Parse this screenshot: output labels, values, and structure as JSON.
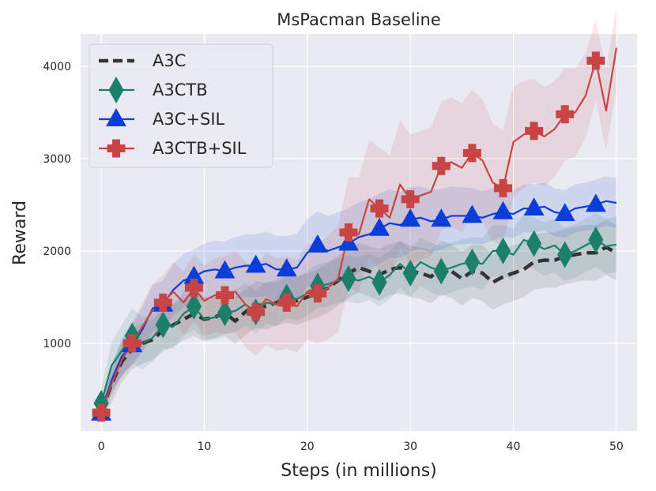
{
  "chart_data": {
    "type": "line",
    "title": "MsPacman Baseline",
    "xlabel": "Steps (in millions)",
    "ylabel": "Reward",
    "xlim": [
      -2,
      52
    ],
    "ylim": [
      50,
      4350
    ],
    "xticks": [
      0,
      10,
      20,
      30,
      40,
      50
    ],
    "yticks": [
      1000,
      2000,
      3000,
      4000
    ],
    "x_tick_labels": [
      "0",
      "10",
      "20",
      "30",
      "40",
      "50"
    ],
    "y_tick_labels": [
      "1000",
      "2000",
      "3000",
      "4000"
    ],
    "grid": true,
    "legend_position": "top-left",
    "series": [
      {
        "name": "A3C",
        "color": "#333333",
        "style": "dashed",
        "marker": "none",
        "x": [
          0,
          1,
          2,
          3,
          4,
          5,
          6,
          7,
          8,
          9,
          10,
          11,
          12,
          13,
          14,
          15,
          16,
          17,
          18,
          19,
          20,
          21,
          22,
          23,
          24,
          25,
          26,
          27,
          28,
          29,
          30,
          31,
          32,
          33,
          34,
          35,
          36,
          37,
          38,
          39,
          40,
          41,
          42,
          43,
          44,
          45,
          46,
          47,
          48,
          49,
          50
        ],
        "y": [
          250,
          560,
          800,
          940,
          1000,
          1040,
          1140,
          1200,
          1260,
          1320,
          1260,
          1280,
          1330,
          1240,
          1340,
          1420,
          1400,
          1440,
          1480,
          1460,
          1500,
          1540,
          1600,
          1680,
          1760,
          1820,
          1780,
          1740,
          1800,
          1820,
          1780,
          1760,
          1720,
          1820,
          1780,
          1700,
          1780,
          1760,
          1660,
          1720,
          1760,
          1800,
          1880,
          1900,
          1900,
          1940,
          1960,
          1980,
          1980,
          2040,
          1980
        ],
        "band": [
          120,
          200,
          220,
          220,
          220,
          220,
          230,
          230,
          230,
          240,
          240,
          240,
          250,
          250,
          250,
          250,
          250,
          250,
          260,
          260,
          260,
          260,
          270,
          270,
          270,
          270,
          270,
          280,
          280,
          280,
          280,
          280,
          290,
          290,
          290,
          290,
          290,
          300,
          300,
          300,
          300,
          300,
          300,
          300,
          300,
          300,
          300,
          300,
          300,
          300,
          300
        ]
      },
      {
        "name": "A3CTB",
        "color": "#1b7f6a",
        "style": "solid",
        "marker": "thin_diamond",
        "marker_x": [
          0,
          3,
          6,
          9,
          12,
          15,
          18,
          21,
          24,
          27,
          30,
          33,
          36,
          39,
          42,
          45,
          48
        ],
        "x": [
          0,
          1,
          2,
          3,
          4,
          5,
          6,
          7,
          8,
          9,
          10,
          11,
          12,
          13,
          14,
          15,
          16,
          17,
          18,
          19,
          20,
          21,
          22,
          23,
          24,
          25,
          26,
          27,
          28,
          29,
          30,
          31,
          32,
          33,
          34,
          35,
          36,
          37,
          38,
          39,
          40,
          41,
          42,
          43,
          44,
          45,
          46,
          47,
          48,
          49,
          50
        ],
        "y": [
          350,
          760,
          920,
          1080,
          1000,
          1060,
          1200,
          1180,
          1320,
          1400,
          1260,
          1280,
          1330,
          1350,
          1420,
          1340,
          1440,
          1420,
          1500,
          1480,
          1540,
          1620,
          1640,
          1680,
          1700,
          1680,
          1720,
          1660,
          1740,
          1860,
          1760,
          1880,
          1820,
          1780,
          1820,
          1860,
          1880,
          1860,
          2000,
          2000,
          1960,
          2120,
          2080,
          2020,
          2060,
          1960,
          2000,
          2060,
          2120,
          2050,
          2070
        ],
        "band": [
          150,
          250,
          280,
          300,
          280,
          260,
          260,
          240,
          240,
          250,
          220,
          220,
          230,
          230,
          230,
          230,
          230,
          230,
          230,
          230,
          240,
          240,
          240,
          240,
          250,
          250,
          250,
          260,
          260,
          260,
          260,
          260,
          270,
          270,
          270,
          270,
          270,
          280,
          280,
          280,
          280,
          280,
          280,
          290,
          290,
          290,
          290,
          290,
          290,
          300,
          300
        ]
      },
      {
        "name": "A3C+SIL",
        "color": "#0a3ed8",
        "style": "solid",
        "marker": "triangle",
        "marker_x": [
          0,
          3,
          6,
          9,
          12,
          15,
          18,
          21,
          24,
          27,
          30,
          33,
          36,
          39,
          42,
          45,
          48
        ],
        "x": [
          0,
          1,
          2,
          3,
          4,
          5,
          6,
          7,
          8,
          9,
          10,
          11,
          12,
          13,
          14,
          15,
          16,
          17,
          18,
          19,
          20,
          21,
          22,
          23,
          24,
          25,
          26,
          27,
          28,
          29,
          30,
          31,
          32,
          33,
          34,
          35,
          36,
          37,
          38,
          39,
          40,
          41,
          42,
          43,
          44,
          45,
          46,
          47,
          48,
          49,
          50
        ],
        "y": [
          240,
          600,
          860,
          980,
          1150,
          1380,
          1420,
          1580,
          1680,
          1720,
          1780,
          1800,
          1780,
          1820,
          1840,
          1840,
          1860,
          1800,
          1800,
          1820,
          1980,
          2060,
          2000,
          2040,
          2080,
          2150,
          2180,
          2240,
          2300,
          2280,
          2340,
          2360,
          2320,
          2340,
          2380,
          2380,
          2380,
          2360,
          2400,
          2420,
          2400,
          2460,
          2460,
          2480,
          2420,
          2400,
          2460,
          2480,
          2500,
          2540,
          2520
        ],
        "band": [
          80,
          150,
          200,
          220,
          240,
          250,
          260,
          280,
          290,
          290,
          300,
          310,
          320,
          330,
          340,
          340,
          350,
          360,
          360,
          370,
          370,
          370,
          380,
          380,
          380,
          380,
          380,
          380,
          370,
          360,
          350,
          340,
          340,
          330,
          320,
          310,
          300,
          290,
          280,
          270,
          260,
          260,
          260,
          260,
          260,
          260,
          260,
          260,
          270,
          270,
          270
        ]
      },
      {
        "name": "A3CTB+SIL",
        "color": "#c94545",
        "style": "solid",
        "marker": "plus",
        "marker_x": [
          0,
          3,
          6,
          9,
          12,
          15,
          18,
          21,
          24,
          27,
          30,
          33,
          36,
          39,
          42,
          45,
          48
        ],
        "x": [
          0,
          1,
          2,
          3,
          4,
          5,
          6,
          7,
          8,
          9,
          10,
          11,
          12,
          13,
          14,
          15,
          16,
          17,
          18,
          19,
          20,
          21,
          22,
          23,
          24,
          25,
          26,
          27,
          28,
          29,
          30,
          31,
          32,
          33,
          34,
          35,
          36,
          37,
          38,
          39,
          40,
          41,
          42,
          43,
          44,
          45,
          46,
          47,
          48,
          49,
          50
        ],
        "y": [
          250,
          560,
          820,
          1000,
          1180,
          1360,
          1440,
          1560,
          1440,
          1600,
          1460,
          1520,
          1520,
          1560,
          1420,
          1340,
          1480,
          1420,
          1440,
          1400,
          1560,
          1540,
          1600,
          1700,
          2200,
          2180,
          2560,
          2460,
          2360,
          2720,
          2560,
          2600,
          2640,
          2920,
          2960,
          2900,
          3060,
          2980,
          2740,
          2680,
          3180,
          3260,
          3300,
          3240,
          3320,
          3480,
          3500,
          3680,
          4060,
          3520,
          4200
        ],
        "band": [
          80,
          120,
          180,
          220,
          260,
          280,
          300,
          320,
          340,
          360,
          380,
          400,
          420,
          440,
          460,
          480,
          500,
          500,
          500,
          500,
          520,
          540,
          560,
          580,
          600,
          620,
          640,
          660,
          680,
          700,
          700,
          700,
          700,
          700,
          700,
          700,
          680,
          660,
          640,
          620,
          600,
          580,
          560,
          540,
          520,
          500,
          480,
          460,
          440,
          440,
          440
        ]
      }
    ]
  }
}
